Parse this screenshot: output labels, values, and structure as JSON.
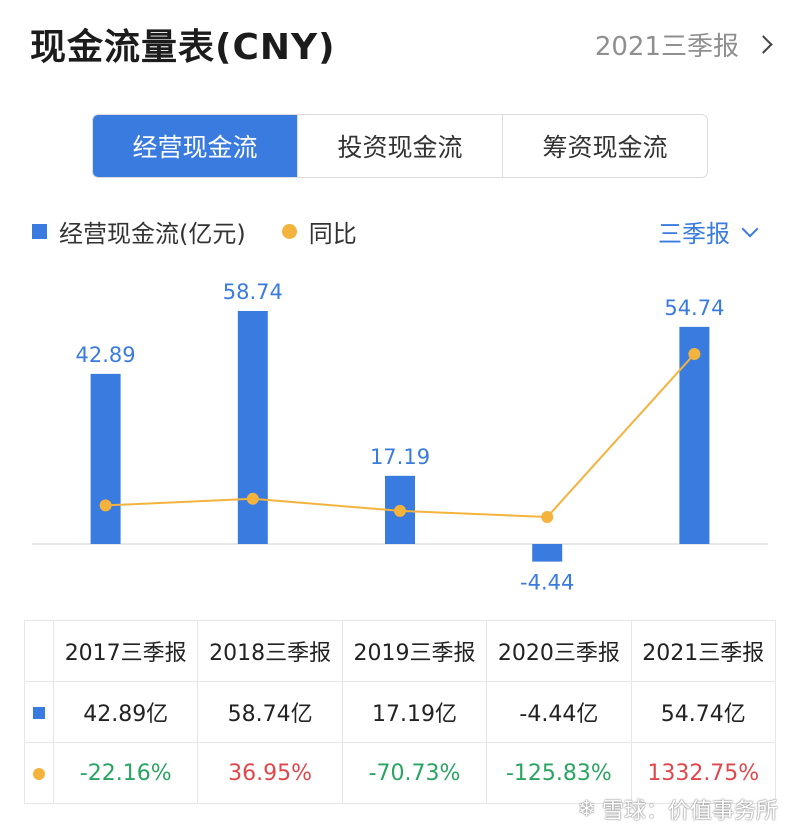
{
  "header": {
    "title": "现金流量表(CNY)",
    "period": "2021三季报"
  },
  "tabs": [
    {
      "label": "经营现金流",
      "active": true
    },
    {
      "label": "投资现金流",
      "active": false
    },
    {
      "label": "筹资现金流",
      "active": false
    }
  ],
  "legend": {
    "bar_label": "经营现金流(亿元)",
    "line_label": "同比"
  },
  "period_select": "三季报",
  "colors": {
    "bar": "#3a7be0",
    "line": "#f3b33d",
    "positive": "#e0474c",
    "negative": "#2aa462"
  },
  "chart_data": {
    "type": "bar",
    "categories": [
      "2017三季报",
      "2018三季报",
      "2019三季报",
      "2020三季报",
      "2021三季报"
    ],
    "series": [
      {
        "name": "经营现金流(亿元)",
        "type": "bar",
        "values": [
          42.89,
          58.74,
          17.19,
          -4.44,
          54.74
        ]
      },
      {
        "name": "同比",
        "type": "line",
        "values": [
          -22.16,
          36.95,
          -70.73,
          -125.83,
          1332.75
        ]
      }
    ],
    "bar_labels": [
      "42.89",
      "58.74",
      "17.19",
      "-4.44",
      "54.74"
    ]
  },
  "table": {
    "headers": [
      "2017三季报",
      "2018三季报",
      "2019三季报",
      "2020三季报",
      "2021三季报"
    ],
    "values": [
      "42.89亿",
      "58.74亿",
      "17.19亿",
      "-4.44亿",
      "54.74亿"
    ],
    "yoy": [
      "-22.16%",
      "36.95%",
      "-70.73%",
      "-125.83%",
      "1332.75%"
    ]
  },
  "watermark": {
    "text": "雪球：价值事务所",
    "icon": "snowball-icon"
  }
}
